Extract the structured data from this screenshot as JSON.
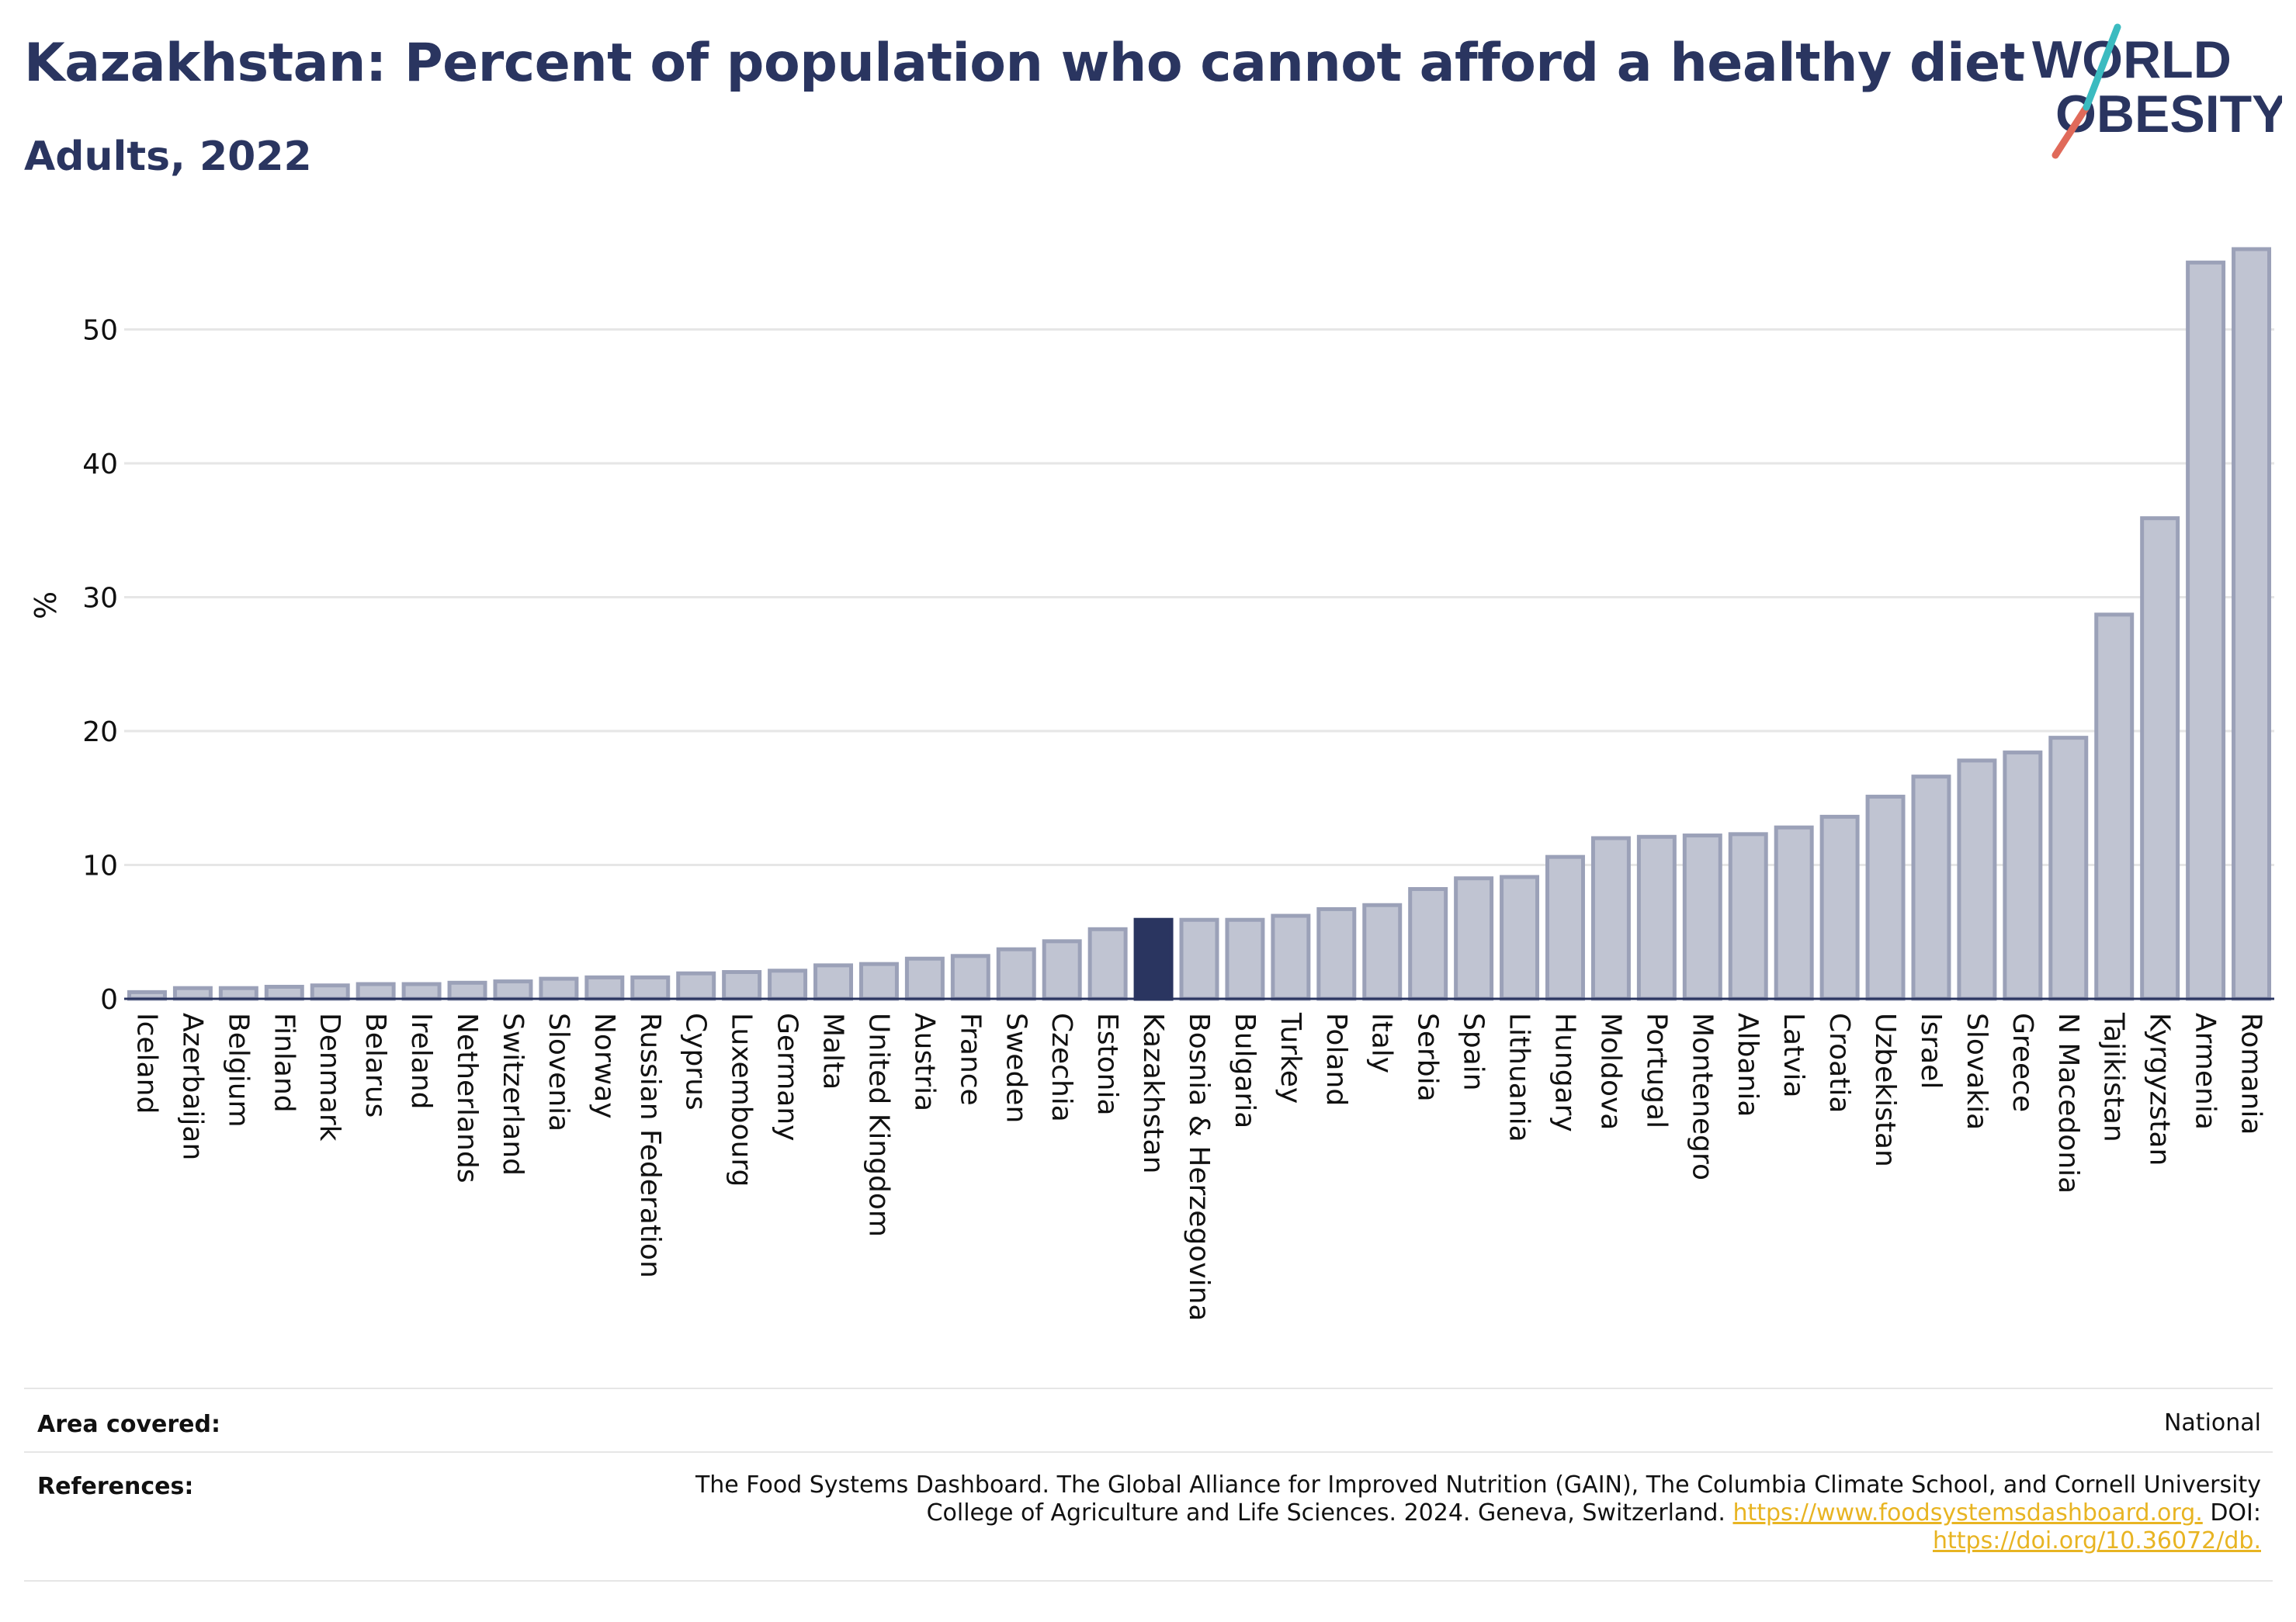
{
  "header": {
    "title": "Kazakhstan: Percent of population who cannot afford a healthy diet",
    "subtitle": "Adults, 2022"
  },
  "logo": {
    "line1": "WORLD",
    "line2": "OBESITY"
  },
  "colors": {
    "highlight": "#2a3560",
    "bar": "#c0c4d2",
    "bar_stroke": "#9ba1b8",
    "grid": "#e6e6e6"
  },
  "chart_data": {
    "type": "bar",
    "ylabel": "%",
    "ylim": [
      0,
      57
    ],
    "yticks": [
      0,
      10,
      20,
      30,
      40,
      50
    ],
    "grid": true,
    "highlight": "Kazakhstan",
    "categories": [
      "Iceland",
      "Azerbaijan",
      "Belgium",
      "Finland",
      "Denmark",
      "Belarus",
      "Ireland",
      "Netherlands",
      "Switzerland",
      "Slovenia",
      "Norway",
      "Russian Federation",
      "Cyprus",
      "Luxembourg",
      "Germany",
      "Malta",
      "United Kingdom",
      "Austria",
      "France",
      "Sweden",
      "Czechia",
      "Estonia",
      "Kazakhstan",
      "Bosnia & Herzegovina",
      "Bulgaria",
      "Turkey",
      "Poland",
      "Italy",
      "Serbia",
      "Spain",
      "Lithuania",
      "Hungary",
      "Moldova",
      "Portugal",
      "Montenegro",
      "Albania",
      "Latvia",
      "Croatia",
      "Uzbekistan",
      "Israel",
      "Slovakia",
      "Greece",
      "N Macedonia",
      "Tajikistan",
      "Kyrgyzstan",
      "Armenia",
      "Romania"
    ],
    "values": [
      0.5,
      0.8,
      0.8,
      0.9,
      1.0,
      1.1,
      1.1,
      1.2,
      1.3,
      1.5,
      1.6,
      1.6,
      1.9,
      2.0,
      2.1,
      2.5,
      2.6,
      3.0,
      3.2,
      3.7,
      4.3,
      5.2,
      5.9,
      5.9,
      5.9,
      6.2,
      6.7,
      7.0,
      8.2,
      9.0,
      9.1,
      10.6,
      12.0,
      12.1,
      12.2,
      12.3,
      12.8,
      13.6,
      15.1,
      16.6,
      17.8,
      18.4,
      19.5,
      28.7,
      35.9,
      55.0,
      56.0
    ]
  },
  "footer": {
    "area_label": "Area covered:",
    "area_value": "National",
    "ref_label": "References:",
    "ref_text1": "The Food Systems Dashboard. The Global Alliance for Improved Nutrition (GAIN), The Columbia Climate School, and Cornell University",
    "ref_text2": "College of Agriculture and Life Sciences. 2024. Geneva, Switzerland.",
    "ref_link1": "https://www.foodsystemsdashboard.org.",
    "ref_text3": "DOI:",
    "ref_link2": "https://doi.org/10.36072/db."
  }
}
